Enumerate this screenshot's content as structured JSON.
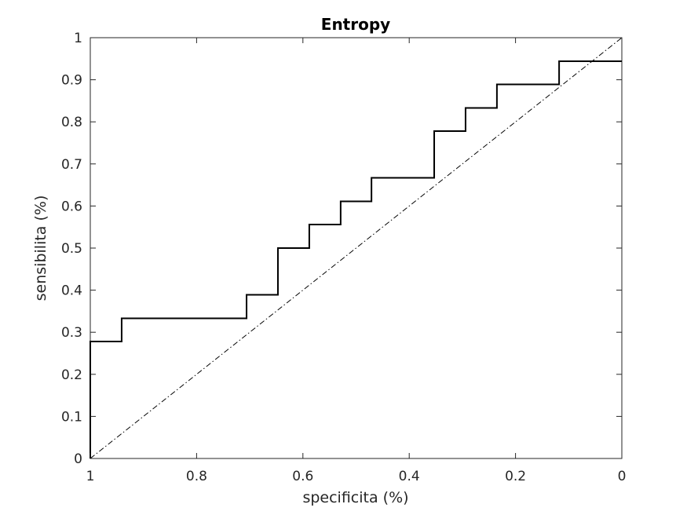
{
  "chart_data": {
    "type": "line",
    "title": "Entropy",
    "xlabel": "specificita (%)",
    "ylabel": "sensibilita (%)",
    "xlim": [
      1,
      0
    ],
    "ylim": [
      0,
      1
    ],
    "x_reversed": true,
    "grid": false,
    "legend": "none",
    "xticks": [
      1,
      0.8,
      0.6,
      0.4,
      0.2,
      0
    ],
    "xtick_labels": [
      "1",
      "0.8",
      "0.6",
      "0.4",
      "0.2",
      "0"
    ],
    "yticks": [
      0,
      0.1,
      0.2,
      0.3,
      0.4,
      0.5,
      0.6,
      0.7,
      0.8,
      0.9,
      1
    ],
    "ytick_labels": [
      "0",
      "0.1",
      "0.2",
      "0.3",
      "0.4",
      "0.5",
      "0.6",
      "0.7",
      "0.8",
      "0.9",
      "1"
    ],
    "series": [
      {
        "style": "solid-step",
        "color": "#000000",
        "x": [
          1.0,
          1.0,
          0.941,
          0.941,
          0.706,
          0.706,
          0.647,
          0.647,
          0.588,
          0.588,
          0.529,
          0.529,
          0.471,
          0.471,
          0.353,
          0.353,
          0.294,
          0.294,
          0.235,
          0.235,
          0.118,
          0.118,
          0.0
        ],
        "y": [
          0.0,
          0.278,
          0.278,
          0.333,
          0.333,
          0.389,
          0.389,
          0.5,
          0.5,
          0.556,
          0.556,
          0.611,
          0.611,
          0.667,
          0.667,
          0.778,
          0.778,
          0.833,
          0.833,
          0.889,
          0.889,
          0.944,
          0.944
        ]
      },
      {
        "style": "dash-dot",
        "color": "#000000",
        "x": [
          1,
          0
        ],
        "y": [
          0,
          1
        ]
      }
    ]
  }
}
